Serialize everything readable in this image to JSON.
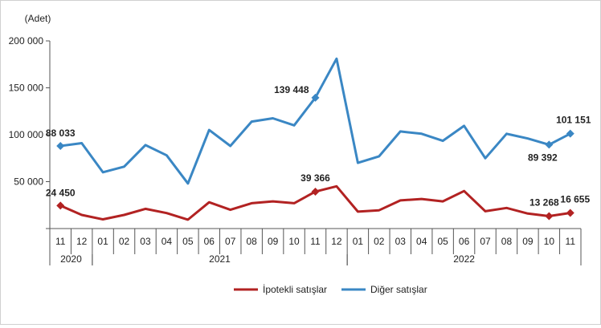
{
  "chart_data": {
    "type": "line",
    "ylabel": "(Adet)",
    "ylim": [
      0,
      200000
    ],
    "yticks": [
      0,
      50000,
      100000,
      150000,
      200000
    ],
    "ytick_labels": [
      "",
      "50 000",
      "100 000",
      "150 000",
      "200 000"
    ],
    "grid": false,
    "legend_position": "bottom-center",
    "categories": [
      "11",
      "12",
      "01",
      "02",
      "03",
      "04",
      "05",
      "06",
      "07",
      "08",
      "09",
      "10",
      "11",
      "12",
      "01",
      "02",
      "03",
      "04",
      "05",
      "06",
      "07",
      "08",
      "09",
      "10",
      "11"
    ],
    "year_groups": [
      {
        "label": "2020",
        "start": 0,
        "end": 1
      },
      {
        "label": "2021",
        "start": 2,
        "end": 13
      },
      {
        "label": "2022",
        "start": 14,
        "end": 24
      }
    ],
    "series": [
      {
        "name": "İpotekli satışlar",
        "color": "#b22222",
        "values": [
          24450,
          14500,
          9800,
          14500,
          21000,
          16500,
          9500,
          28000,
          20000,
          27000,
          29000,
          27000,
          39366,
          45000,
          18000,
          19500,
          30000,
          31500,
          29000,
          40000,
          18500,
          22000,
          16000,
          13268,
          16655
        ],
        "markers": [
          0,
          12,
          23,
          24
        ],
        "labels": [
          {
            "index": 0,
            "text": "24 450"
          },
          {
            "index": 12,
            "text": "39 366"
          },
          {
            "index": 23,
            "text": "13 268"
          },
          {
            "index": 24,
            "text": "16 655"
          }
        ]
      },
      {
        "name": "Diğer satışlar",
        "color": "#3a87c4",
        "values": [
          88033,
          91000,
          60000,
          66000,
          89000,
          78000,
          48000,
          105000,
          88000,
          114000,
          117500,
          110000,
          139448,
          181000,
          70000,
          77000,
          103500,
          101000,
          93500,
          109500,
          75000,
          101000,
          96000,
          89392,
          101151
        ],
        "markers": [
          0,
          12,
          23,
          24
        ],
        "labels": [
          {
            "index": 0,
            "text": "88 033"
          },
          {
            "index": 12,
            "text": "139 448"
          },
          {
            "index": 23,
            "text": "89 392"
          },
          {
            "index": 24,
            "text": "101 151"
          }
        ]
      }
    ]
  }
}
